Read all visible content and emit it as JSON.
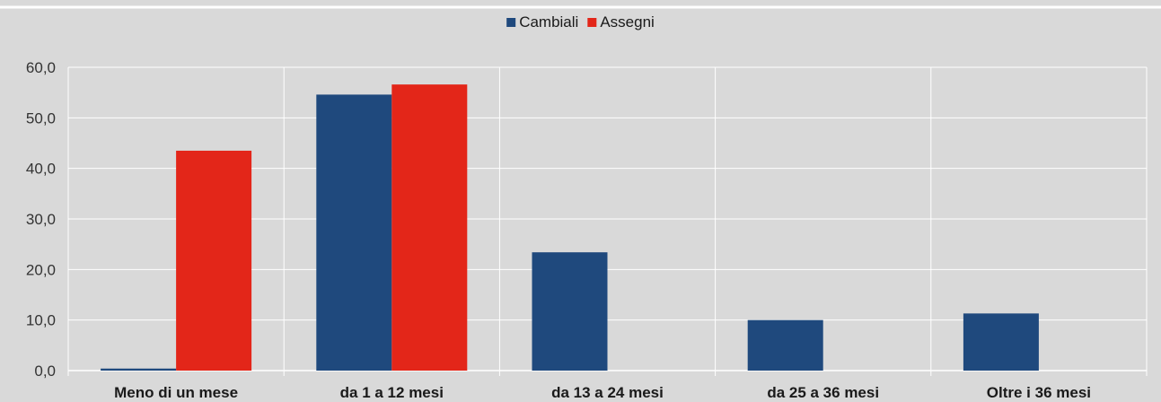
{
  "chart_data": {
    "type": "bar",
    "categories": [
      "Meno di un mese",
      "da 1 a 12 mesi",
      "da 13 a 24 mesi",
      "da 25 a 36 mesi",
      "Oltre i 36 mesi"
    ],
    "series": [
      {
        "name": "Cambiali",
        "color": "#1f497d",
        "values": [
          0.4,
          54.6,
          23.4,
          10.0,
          11.3
        ]
      },
      {
        "name": "Assegni",
        "color": "#e32619",
        "values": [
          43.5,
          56.6,
          0,
          0,
          0
        ]
      }
    ],
    "ylim": [
      0,
      60
    ],
    "yticks": [
      "0,0",
      "10,0",
      "20,0",
      "30,0",
      "40,0",
      "50,0",
      "60,0"
    ],
    "grid": true,
    "legend_position": "top-center",
    "background": "#d9d9d9",
    "gridline_color": "#ffffff"
  }
}
